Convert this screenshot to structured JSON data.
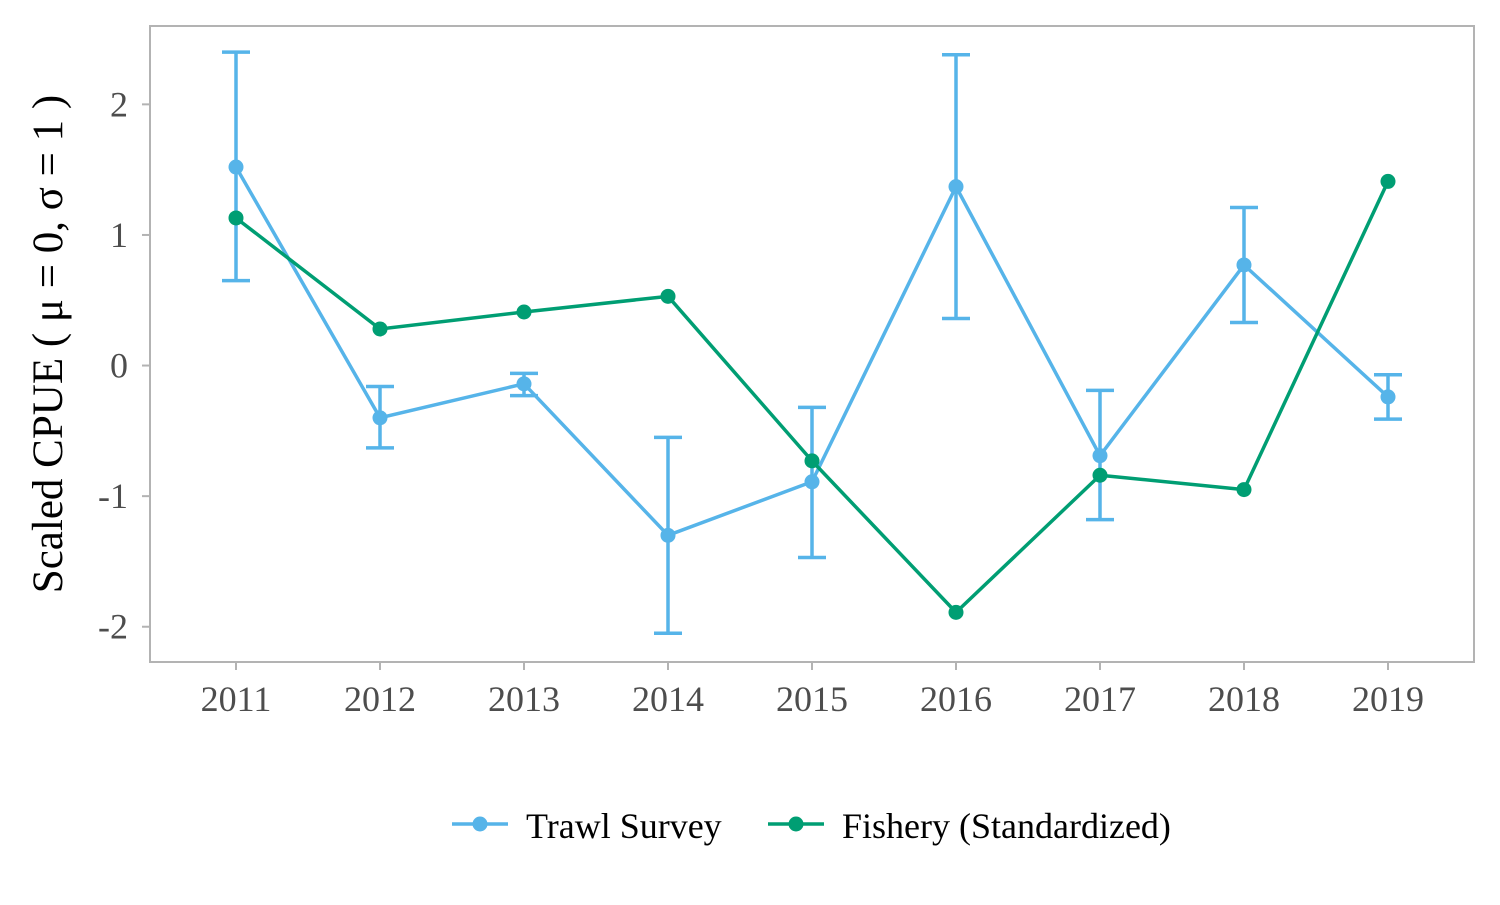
{
  "chart_data": {
    "type": "line",
    "title": "",
    "xlabel": "",
    "ylabel": "Scaled CPUE ( μ = 0, σ = 1 )",
    "x": [
      "2011",
      "2012",
      "2013",
      "2014",
      "2015",
      "2016",
      "2017",
      "2018",
      "2019"
    ],
    "y_ticks": [
      -2,
      -1,
      0,
      1,
      2
    ],
    "y_tick_labels": [
      "-2",
      "-1",
      "0",
      "1",
      "2"
    ],
    "ylim": [
      -2.27,
      2.6
    ],
    "grid": false,
    "legend_position": "bottom",
    "series": [
      {
        "name": "Trawl Survey",
        "color": "#56B4E9",
        "values": [
          1.52,
          -0.4,
          -0.14,
          -1.3,
          -0.89,
          1.37,
          -0.69,
          0.77,
          -0.24
        ],
        "error_low": [
          0.65,
          -0.63,
          -0.23,
          -2.05,
          -1.47,
          0.36,
          -1.18,
          0.33,
          -0.41
        ],
        "error_high": [
          2.4,
          -0.16,
          -0.06,
          -0.55,
          -0.32,
          2.38,
          -0.19,
          1.21,
          -0.07
        ]
      },
      {
        "name": "Fishery (Standardized)",
        "color": "#009E73",
        "values": [
          1.13,
          0.28,
          0.41,
          0.53,
          -0.73,
          -1.89,
          -0.84,
          -0.95,
          1.41
        ]
      }
    ]
  }
}
